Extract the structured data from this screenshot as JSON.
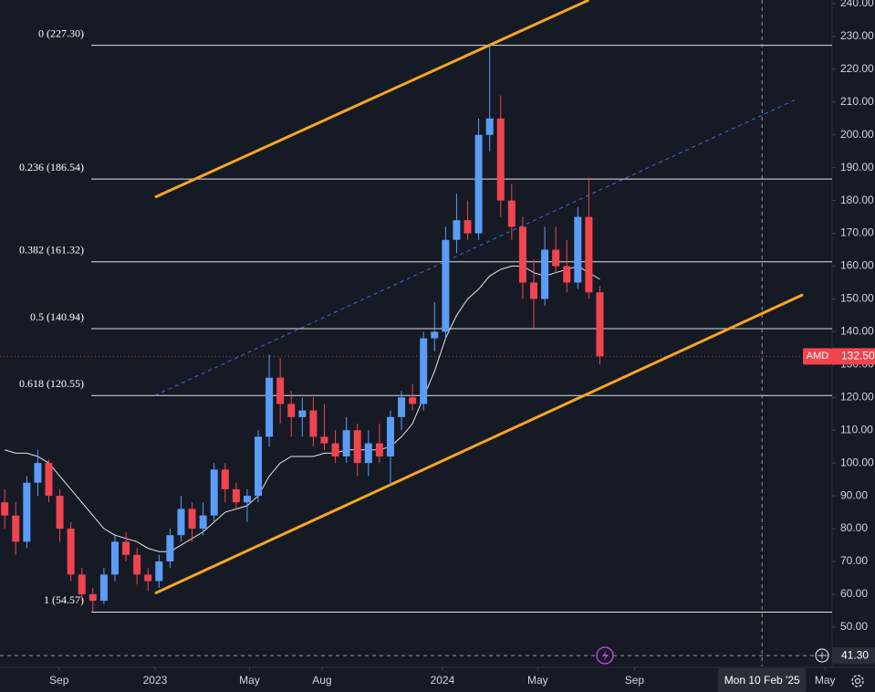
{
  "chart_data": {
    "type": "candlestick",
    "dates": [
      "2022-06-24",
      "2022-07-08",
      "2022-07-22",
      "2022-08-05",
      "2022-08-19",
      "2022-09-02",
      "2022-09-16",
      "2022-09-30",
      "2022-10-14",
      "2022-10-28",
      "2022-11-11",
      "2022-11-25",
      "2022-12-09",
      "2022-12-23",
      "2023-01-06",
      "2023-01-20",
      "2023-02-03",
      "2023-02-17",
      "2023-03-03",
      "2023-03-17",
      "2023-03-31",
      "2023-04-14",
      "2023-04-28",
      "2023-05-12",
      "2023-05-26",
      "2023-06-09",
      "2023-06-23",
      "2023-07-07",
      "2023-07-21",
      "2023-08-04",
      "2023-08-18",
      "2023-09-01",
      "2023-09-15",
      "2023-09-29",
      "2023-10-13",
      "2023-10-27",
      "2023-11-10",
      "2023-11-24",
      "2023-12-08",
      "2023-12-22",
      "2024-01-05",
      "2024-01-19",
      "2024-02-02",
      "2024-02-16",
      "2024-03-01",
      "2024-03-15",
      "2024-03-29",
      "2024-04-12",
      "2024-04-26",
      "2024-05-10",
      "2024-05-24",
      "2024-06-07",
      "2024-06-21",
      "2024-07-05",
      "2024-07-19"
    ],
    "open": [
      88,
      84,
      76,
      94,
      100,
      90,
      80,
      66,
      60,
      58,
      66,
      76,
      72,
      66,
      64,
      70,
      78,
      86,
      80,
      84,
      98,
      92,
      88,
      90,
      108,
      126,
      118,
      114,
      116,
      108,
      106,
      102,
      110,
      100,
      106,
      102,
      114,
      120,
      118,
      138,
      140,
      168,
      174,
      170,
      200,
      205,
      180,
      172,
      155,
      150,
      165,
      160,
      155,
      175,
      152
    ],
    "high": [
      92,
      88,
      96,
      104,
      101,
      92,
      82,
      68,
      62,
      68,
      78,
      79,
      74,
      68,
      72,
      80,
      90,
      88,
      88,
      100,
      100,
      94,
      92,
      110,
      133,
      132,
      122,
      120,
      120,
      118,
      110,
      114,
      112,
      110,
      112,
      116,
      122,
      124,
      140,
      149,
      172,
      182,
      180,
      205,
      227.3,
      212,
      185,
      175,
      162,
      172,
      172,
      168,
      178,
      187,
      154
    ],
    "low": [
      80,
      72,
      74,
      90,
      88,
      76,
      64,
      58,
      54.57,
      57,
      64,
      70,
      63,
      61,
      62,
      68,
      76,
      76,
      78,
      82,
      88,
      86,
      82,
      88,
      105,
      112,
      108,
      108,
      105,
      104,
      100,
      100,
      96,
      96,
      100,
      93,
      110,
      116,
      116,
      134,
      138,
      164,
      168,
      168,
      195,
      175,
      168,
      150,
      141,
      148,
      158,
      152,
      153,
      150,
      130
    ],
    "close": [
      84,
      76,
      94,
      100,
      90,
      80,
      66,
      60,
      58,
      66,
      76,
      72,
      66,
      64,
      70,
      78,
      86,
      80,
      84,
      98,
      92,
      88,
      90,
      108,
      126,
      118,
      114,
      116,
      108,
      106,
      102,
      110,
      100,
      106,
      102,
      114,
      120,
      118,
      138,
      140,
      168,
      174,
      170,
      200,
      205,
      180,
      172,
      155,
      150,
      165,
      160,
      155,
      175,
      152,
      132.5
    ],
    "up_color": "#5b9cf6",
    "down_color": "#f0444f",
    "moving_average": {
      "color": "#e6e6e6",
      "values": [
        104,
        103,
        103,
        102,
        100,
        96,
        92,
        88,
        84,
        80,
        78,
        77,
        76,
        74,
        73,
        73,
        75,
        77,
        79,
        82,
        85,
        86,
        87,
        90,
        96,
        100,
        102,
        102,
        102,
        103,
        103,
        104,
        104,
        104,
        104,
        105,
        108,
        112,
        120,
        128,
        138,
        145,
        150,
        153,
        157,
        159,
        160,
        160,
        158,
        157,
        158,
        159,
        160,
        158,
        156
      ]
    },
    "fib_levels": [
      {
        "value": 227.3,
        "label": "0 (227.30)"
      },
      {
        "value": 186.54,
        "label": "0.236 (186.54)"
      },
      {
        "value": 161.32,
        "label": "0.382 (161.32)"
      },
      {
        "value": 140.94,
        "label": "0.5 (140.94)"
      },
      {
        "value": 120.55,
        "label": "0.618 (120.55)"
      },
      {
        "value": 54.57,
        "label": "1 (54.57)"
      }
    ],
    "trendlines": [
      {
        "color": "#f5a623",
        "dashed": false,
        "dates": [
          "2023-01-01",
          "2024-07-05"
        ],
        "prices": [
          181.0,
          241.1
        ]
      },
      {
        "color": "#f5a623",
        "dashed": false,
        "dates": [
          "2023-01-01",
          "2025-04-03"
        ],
        "prices": [
          60.3,
          151.3
        ]
      },
      {
        "color": "#3d6fd6",
        "dashed": true,
        "dates": [
          "2023-01-01",
          "2025-03-28"
        ],
        "prices": [
          120.6,
          211.1
        ]
      }
    ],
    "last": {
      "symbol": "AMD",
      "price": {
        "value": 132.5,
        "label": "132.50"
      },
      "color": "#f0444f"
    },
    "crosshair": {
      "date": "2025-02-10",
      "label": "Mon 10 Feb '25",
      "price": {
        "value": 41.3,
        "label": "41.30"
      }
    },
    "xlim": [
      "2022-06-18",
      "2025-05-10"
    ],
    "xticks": [
      {
        "value": "2022-09-01",
        "label": "Sep"
      },
      {
        "value": "2023-01-01",
        "label": "2023"
      },
      {
        "value": "2023-05-01",
        "label": "May"
      },
      {
        "value": "2023-08-01",
        "label": "Aug"
      },
      {
        "value": "2024-01-01",
        "label": "2024"
      },
      {
        "value": "2024-05-01",
        "label": "May"
      },
      {
        "value": "2024-09-01",
        "label": "Sep"
      },
      {
        "value": "2025-05-01",
        "label": "May"
      }
    ],
    "ylim": [
      38,
      241.1
    ],
    "yticks": [
      {
        "value": 50,
        "label": "50.00"
      },
      {
        "value": 60,
        "label": "60.00"
      },
      {
        "value": 70,
        "label": "70.00"
      },
      {
        "value": 80,
        "label": "80.00"
      },
      {
        "value": 90,
        "label": "90.00"
      },
      {
        "value": 100,
        "label": "100.00"
      },
      {
        "value": 110,
        "label": "110.00"
      },
      {
        "value": 120,
        "label": "120.00"
      },
      {
        "value": 130,
        "label": "130.00"
      },
      {
        "value": 140,
        "label": "140.00"
      },
      {
        "value": 150,
        "label": "150.00"
      },
      {
        "value": 160,
        "label": "160.00"
      },
      {
        "value": 170,
        "label": "170.00"
      },
      {
        "value": 180,
        "label": "180.00"
      },
      {
        "value": 190,
        "label": "190.00"
      },
      {
        "value": 200,
        "label": "200.00"
      },
      {
        "value": 210,
        "label": "210.00"
      },
      {
        "value": 220,
        "label": "220.00"
      },
      {
        "value": 230,
        "label": "230.00"
      },
      {
        "value": 240,
        "label": "240.00"
      }
    ]
  }
}
